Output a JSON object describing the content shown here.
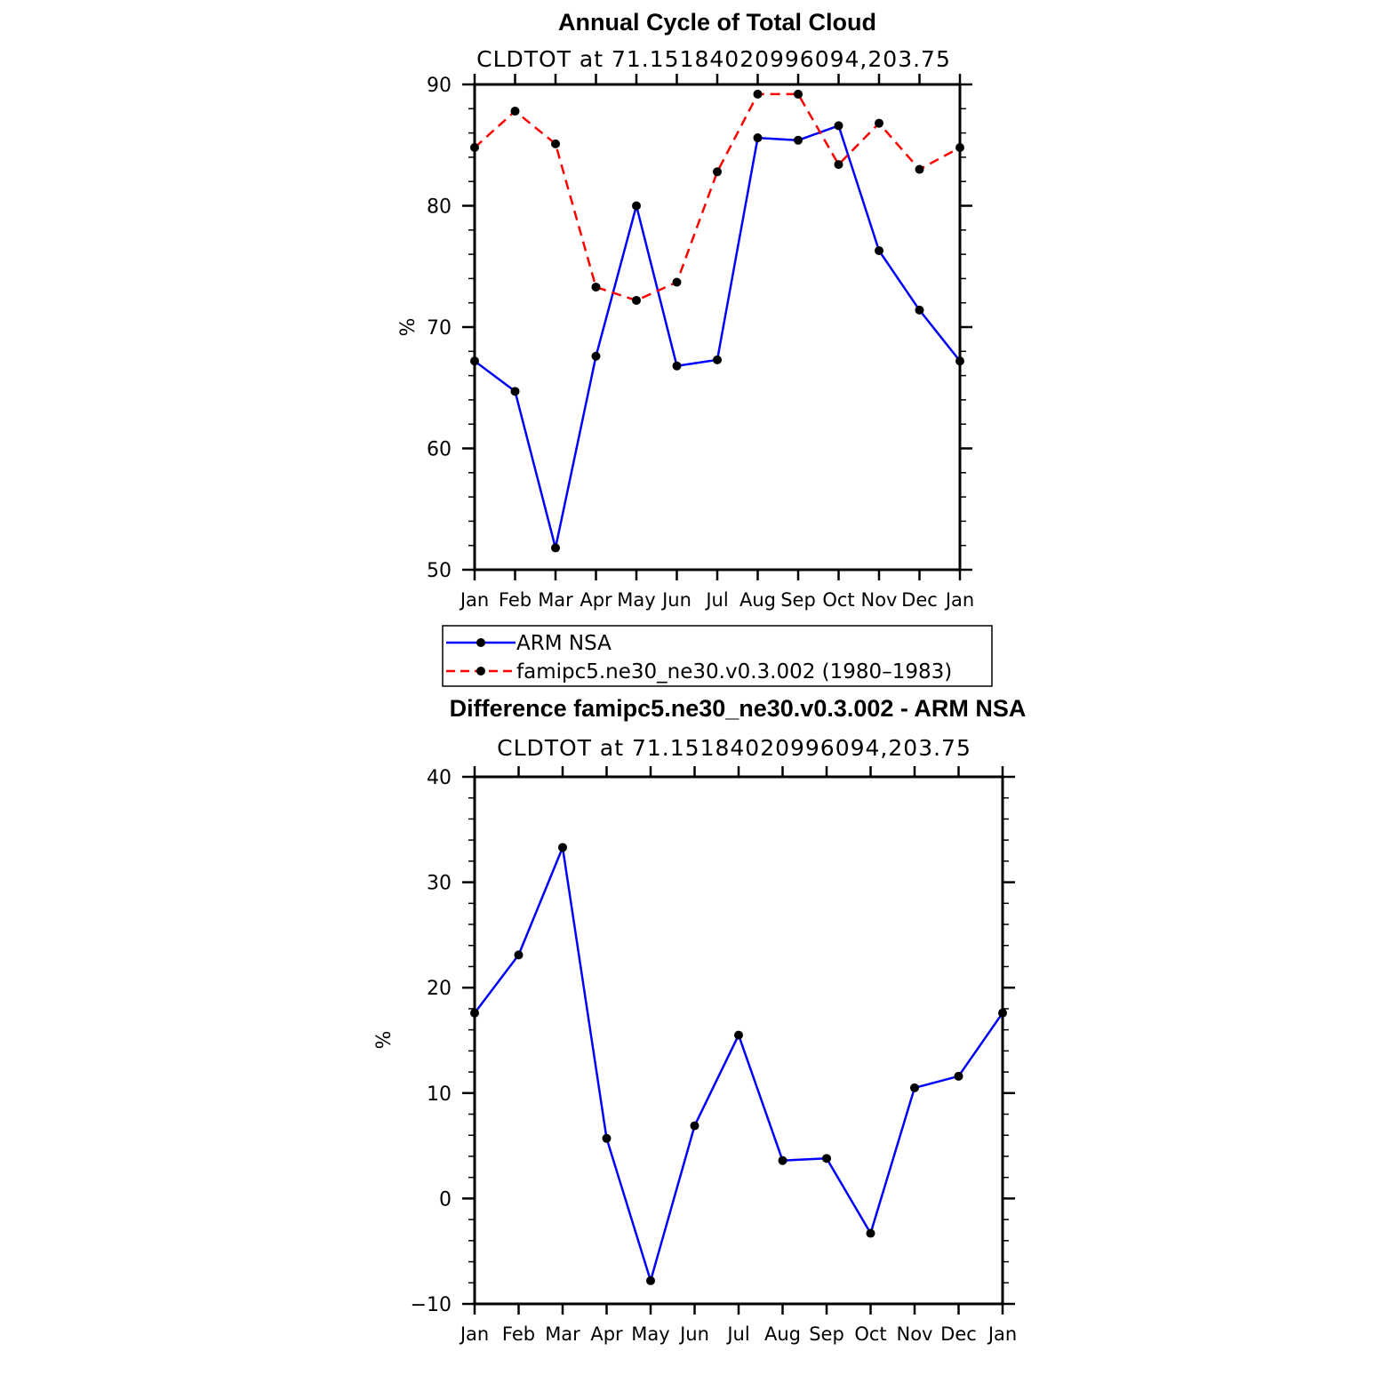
{
  "chart_data": [
    {
      "type": "line",
      "title": "Annual Cycle of Total Cloud",
      "subtitle": "CLDTOT at 71.15184020996094,203.75",
      "ylabel": "%",
      "xlabel": "",
      "ylim": [
        50,
        90
      ],
      "yticks": [
        50,
        60,
        70,
        80,
        90
      ],
      "categories": [
        "Jan",
        "Feb",
        "Mar",
        "Apr",
        "May",
        "Jun",
        "Jul",
        "Aug",
        "Sep",
        "Oct",
        "Nov",
        "Dec",
        "Jan"
      ],
      "series": [
        {
          "name": "ARM NSA",
          "color": "#0000ff",
          "dash": "solid",
          "values": [
            67.2,
            64.7,
            51.8,
            67.6,
            80.0,
            66.8,
            67.3,
            85.6,
            85.4,
            86.6,
            76.3,
            71.4,
            67.2
          ]
        },
        {
          "name": "famipc5.ne30_ne30.v0.3.002 (1980–1983)",
          "color": "#ff0000",
          "dash": "dashed",
          "values": [
            84.8,
            87.8,
            85.1,
            73.3,
            72.2,
            73.7,
            82.8,
            89.2,
            89.2,
            83.4,
            86.8,
            83.0,
            84.8
          ]
        }
      ],
      "legend": "below"
    },
    {
      "type": "line",
      "title": "Difference famipc5.ne30_ne30.v0.3.002 - ARM NSA",
      "subtitle": "CLDTOT at 71.15184020996094,203.75",
      "ylabel": "%",
      "xlabel": "",
      "ylim": [
        -10,
        40
      ],
      "yticks": [
        -10,
        0,
        10,
        20,
        30,
        40
      ],
      "ytick_labels": [
        "−10",
        "0",
        "10",
        "20",
        "30",
        "40"
      ],
      "categories": [
        "Jan",
        "Feb",
        "Mar",
        "Apr",
        "May",
        "Jun",
        "Jul",
        "Aug",
        "Sep",
        "Oct",
        "Nov",
        "Dec",
        "Jan"
      ],
      "series": [
        {
          "name": "",
          "color": "#0000ff",
          "dash": "solid",
          "values": [
            17.6,
            23.1,
            33.3,
            5.7,
            -7.8,
            6.9,
            15.5,
            3.6,
            3.8,
            -3.3,
            10.5,
            11.6,
            17.6
          ]
        }
      ]
    }
  ]
}
